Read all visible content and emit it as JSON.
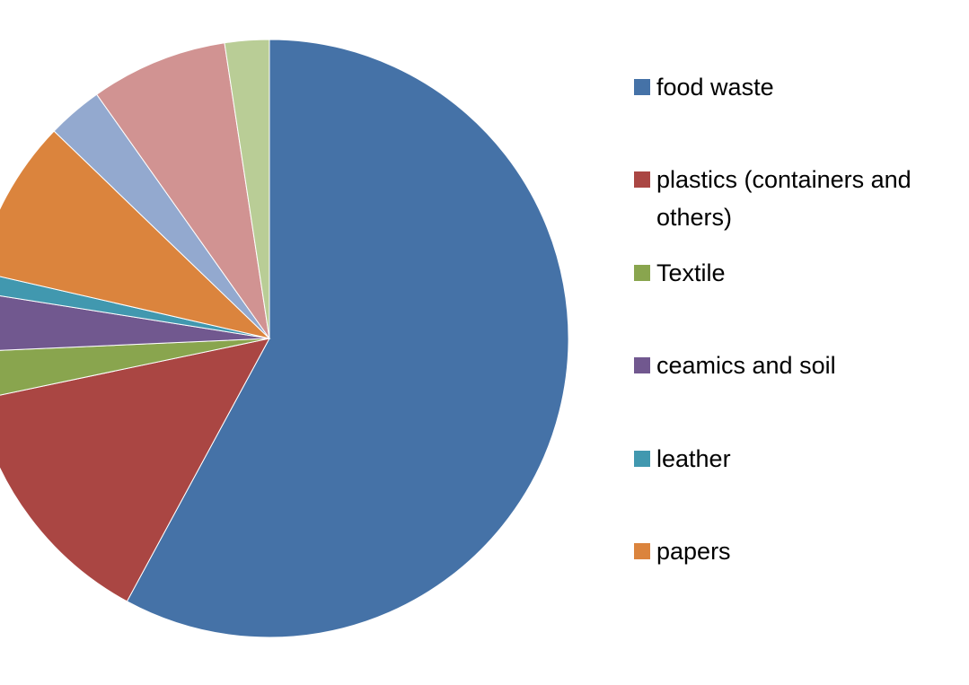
{
  "chart_data": {
    "type": "pie",
    "categories": [
      "food waste",
      "plastics (containers and others)",
      "Textile",
      "ceamics and soil",
      "leather",
      "papers",
      null,
      null,
      null
    ],
    "values": [
      57.9,
      13.8,
      2.6,
      3.2,
      1.1,
      8.6,
      3.0,
      7.4,
      2.4
    ],
    "colors": [
      "#4572a7",
      "#aa4643",
      "#89a54e",
      "#71588f",
      "#4198af",
      "#db843d",
      "#93a9cf",
      "#d19392",
      "#b9cd96"
    ],
    "legend": "right"
  }
}
